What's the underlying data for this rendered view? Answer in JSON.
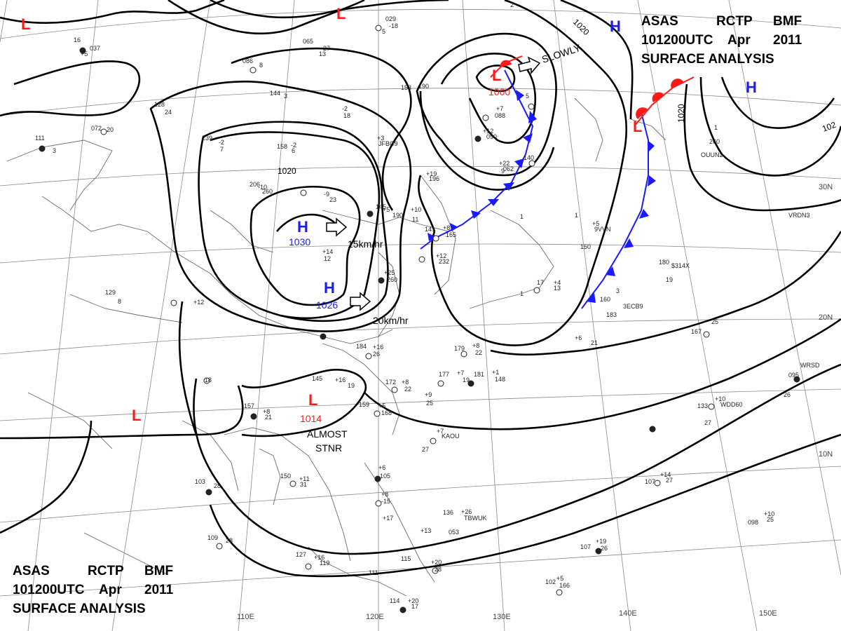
{
  "title_top": {
    "line1_words": [
      "ASAS",
      "RCTP",
      "BMF"
    ],
    "line2_words": [
      "101200UTC",
      "Apr",
      "2011"
    ],
    "line3": "SURFACE ANALYSIS"
  },
  "title_bottom": {
    "line1_words": [
      "ASAS",
      "RCTP",
      "BMF"
    ],
    "line2_words": [
      "101200UTC",
      "Apr",
      "2011"
    ],
    "line3": "SURFACE ANALYSIS"
  },
  "longitude_labels": [
    "110E",
    "120E",
    "130E",
    "140E",
    "150E"
  ],
  "latitude_labels": [
    "10N",
    "20N",
    "30N"
  ],
  "isobar_labels": [
    "1020",
    "1020",
    "1020",
    "102"
  ],
  "pressure_systems": [
    {
      "type": "H",
      "value": "1030"
    },
    {
      "type": "H",
      "value": "1026"
    },
    {
      "type": "L",
      "value": "1000"
    },
    {
      "type": "L",
      "value": "1014"
    },
    {
      "type": "H",
      "value": ""
    },
    {
      "type": "H",
      "value": ""
    },
    {
      "type": "L",
      "value": ""
    },
    {
      "type": "L",
      "value": ""
    },
    {
      "type": "L",
      "value": ""
    },
    {
      "type": "L",
      "value": ""
    }
  ],
  "motion_labels": [
    "15km/hr",
    "20km/hr",
    "SLOWLY"
  ],
  "almost_stnr": [
    "ALMOST",
    "STNR"
  ],
  "station_labels": [
    "16",
    "037",
    "+5",
    "029",
    "-18",
    "5",
    "065",
    "-27",
    "13",
    "086",
    "8",
    "144",
    "3",
    "153",
    "190",
    "-2",
    "18",
    "128",
    "24",
    "072",
    "20",
    "111",
    "3",
    "239",
    "-2",
    "7",
    "158",
    "-2",
    "6",
    "206",
    "-10",
    "260",
    "-9",
    "23",
    "145",
    "+5",
    "190",
    "+10",
    "11",
    "141",
    "+8",
    "165",
    "+12",
    "232",
    "+25",
    "260",
    "+14",
    "12",
    "129",
    "8",
    "+12",
    "18",
    "184",
    "+16",
    "26",
    "145",
    "+16",
    "19",
    "172",
    "+8",
    "22",
    "157",
    "+8",
    "21",
    "159",
    "+5",
    "168",
    "+9",
    "25",
    "150",
    "+11",
    "31",
    "103",
    "28",
    "109",
    "28",
    "127",
    "+16",
    "119",
    "111",
    "+6",
    "105",
    "+8",
    "-15",
    "+17",
    "+13",
    "115",
    "+20",
    "28",
    "114",
    "+20",
    "17",
    "179",
    "+8",
    "22",
    "177",
    "+7",
    "19",
    "181",
    "+1",
    "148",
    "+7",
    "KAOU",
    "27",
    "136",
    "+26",
    "TBWUK",
    "053",
    "+7",
    "088",
    "+12",
    "090",
    "+22",
    "062",
    "5",
    "140",
    "+5",
    "9VVN",
    "150",
    "+4",
    "13",
    "17",
    "180",
    "$314X",
    "19",
    "160",
    "3",
    "3ECB9",
    "183",
    "+6",
    "21",
    "167",
    "25",
    "095",
    "WRSD",
    "26",
    "133",
    "+10",
    "WDD60",
    "27",
    "107",
    "+14",
    "27",
    "107",
    "+19",
    "26",
    "098",
    "+10",
    "25",
    "102",
    "+5",
    "166",
    "+19",
    "196",
    "+3",
    "JFBC9",
    "VRDN3",
    "OUUN2",
    "260",
    "1",
    "2",
    "9",
    "1",
    "1",
    "1"
  ],
  "colors": {
    "high": "#1a1aff",
    "low": "#ff1a1a",
    "isobar": "#000000",
    "grid": "#8a8a8a"
  }
}
